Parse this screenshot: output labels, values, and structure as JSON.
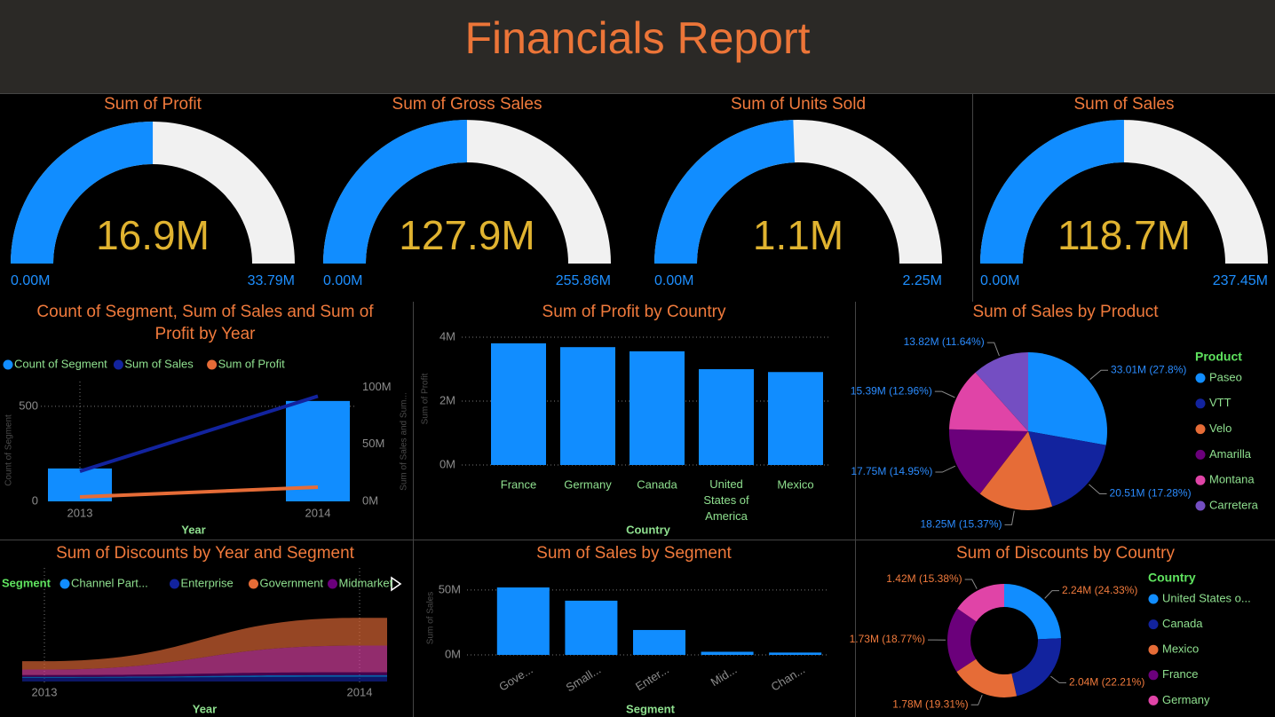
{
  "title": "Financials Report",
  "chart_data": [
    {
      "type": "gauge",
      "title": "Sum of Profit",
      "value": 16.9,
      "value_label": "16.9M",
      "ylim": [
        0,
        33.79
      ],
      "yticks": [
        {
          "value": 0,
          "label": "0.00M"
        },
        {
          "value": 33.79,
          "label": "33.79M"
        }
      ],
      "color": "#118dff",
      "track_color": "#f1f1f1",
      "value_color": "#e0b330",
      "tick_color": "#1e8fff"
    },
    {
      "type": "gauge",
      "title": "Sum of Gross Sales",
      "value": 127.9,
      "value_label": "127.9M",
      "ylim": [
        0,
        255.86
      ],
      "yticks": [
        {
          "value": 0,
          "label": "0.00M"
        },
        {
          "value": 255.86,
          "label": "255.86M"
        }
      ],
      "color": "#118dff",
      "track_color": "#f1f1f1",
      "value_color": "#e0b330",
      "tick_color": "#1e8fff"
    },
    {
      "type": "gauge",
      "title": "Sum of Units Sold",
      "value": 1.1,
      "value_label": "1.1M",
      "ylim": [
        0,
        2.25
      ],
      "yticks": [
        {
          "value": 0,
          "label": "0.00M"
        },
        {
          "value": 2.25,
          "label": "2.25M"
        }
      ],
      "color": "#118dff",
      "track_color": "#f1f1f1",
      "value_color": "#e0b330",
      "tick_color": "#1e8fff"
    },
    {
      "type": "gauge",
      "title": "Sum of Sales",
      "value": 118.7,
      "value_label": "118.7M",
      "ylim": [
        0,
        237.45
      ],
      "yticks": [
        {
          "value": 0,
          "label": "0.00M"
        },
        {
          "value": 237.45,
          "label": "237.45M"
        }
      ],
      "color": "#118dff",
      "track_color": "#f1f1f1",
      "value_color": "#e0b330",
      "tick_color": "#1e8fff"
    },
    {
      "type": "combo",
      "title": "Count of Segment, Sum of Sales and Sum of Profit by Year",
      "categories": [
        "2013",
        "2014"
      ],
      "series": [
        {
          "name": "Count of Segment",
          "type": "bar",
          "color": "#118dff",
          "values": [
            173,
            528
          ]
        },
        {
          "name": "Sum of  Sales",
          "type": "line",
          "axis": "y2",
          "color": "#12239e",
          "values": [
            26.4,
            92.2
          ]
        },
        {
          "name": "Sum of Profit",
          "type": "line",
          "axis": "y2",
          "color": "#e66c37",
          "values": [
            3.9,
            12.4
          ]
        }
      ],
      "ylim": [
        0,
        630
      ],
      "yticks": [
        0,
        500
      ],
      "y2lim": [
        0,
        105
      ],
      "y2ticks": [
        {
          "value": 0,
          "label": "0M"
        },
        {
          "value": 50,
          "label": "50M"
        },
        {
          "value": 100,
          "label": "100M"
        }
      ],
      "xlabel": "Year",
      "ylabel": "Count of Segment",
      "y2label": "Sum of Sales and Sum...",
      "grid": true
    },
    {
      "type": "bar",
      "title": "Sum of Profit by Country",
      "categories": [
        "France",
        "Germany",
        "Canada",
        "United States of America",
        "Mexico"
      ],
      "values": [
        3.81,
        3.69,
        3.56,
        3.0,
        2.91
      ],
      "color": "#118dff",
      "ylim": [
        0,
        4.14
      ],
      "yticks": [
        {
          "value": 0,
          "label": "0M"
        },
        {
          "value": 2,
          "label": "2M"
        },
        {
          "value": 4,
          "label": "4M"
        }
      ],
      "xlabel": "Country",
      "ylabel": "Sum of Profit",
      "grid": true
    },
    {
      "type": "pie",
      "title": "Sum of Sales by Product",
      "legend_title": "Product",
      "categories": [
        "Paseo",
        "VTT",
        "Velo",
        "Amarilla",
        "Montana",
        "Carretera"
      ],
      "values": [
        33.01,
        20.51,
        18.25,
        17.75,
        15.39,
        13.82
      ],
      "value_labels": [
        "33.01M (27.8%)",
        "20.51M (17.28%)",
        "18.25M (15.37%)",
        "17.75M (14.95%)",
        "15.39M (12.96%)",
        "13.82M (11.64%)"
      ],
      "colors": [
        "#118dff",
        "#12239e",
        "#e66c37",
        "#6b007b",
        "#e044a7",
        "#744ec2"
      ],
      "label_color": "#2b8cff"
    },
    {
      "type": "area",
      "title": "Sum of Discounts by Year and Segment",
      "legend_title": "Segment",
      "categories": [
        "2013",
        "2014"
      ],
      "series": [
        {
          "name": "Channel Part...",
          "color": "#118dff",
          "values": [
            0.1,
            0.2
          ]
        },
        {
          "name": "Enterprise",
          "color": "#12239e",
          "values": [
            0.4,
            0.5
          ]
        },
        {
          "name": "Government",
          "color": "#e66c37",
          "values": [
            0.9,
            3.0
          ]
        },
        {
          "name": "Midmarket",
          "color": "#6b007b",
          "values": [
            0.2,
            0.3
          ]
        },
        {
          "name": null,
          "color": "#e044a7",
          "values": [
            0.6,
            2.9
          ]
        }
      ],
      "ylim": [
        0,
        7.5
      ],
      "xlabel": "Year"
    },
    {
      "type": "bar",
      "title": "Sum of Sales by Segment",
      "categories": [
        "Gove...",
        "Small...",
        "Enter...",
        "Mid...",
        "Chan..."
      ],
      "values": [
        52.0,
        41.8,
        19.2,
        2.4,
        1.8
      ],
      "color": "#118dff",
      "ylim": [
        0,
        56.8
      ],
      "yticks": [
        {
          "value": 0,
          "label": "0M"
        },
        {
          "value": 50,
          "label": "50M"
        }
      ],
      "xlabel": "Segment",
      "ylabel": "Sum of Sales",
      "grid": true,
      "rotate_labels": true
    },
    {
      "type": "donut",
      "title": "Sum of Discounts by Country",
      "legend_title": "Country",
      "categories": [
        "United States o...",
        "Canada",
        "Mexico",
        "France",
        "Germany"
      ],
      "values": [
        2.24,
        2.04,
        1.78,
        1.73,
        1.42
      ],
      "value_labels": [
        "2.24M (24.33%)",
        "2.04M (22.21%)",
        "1.78M (19.31%)",
        "1.73M (18.77%)",
        "1.42M (15.38%)"
      ],
      "colors": [
        "#118dff",
        "#12239e",
        "#e66c37",
        "#6b007b",
        "#e044a7"
      ],
      "label_color": "#f07a3c"
    }
  ]
}
